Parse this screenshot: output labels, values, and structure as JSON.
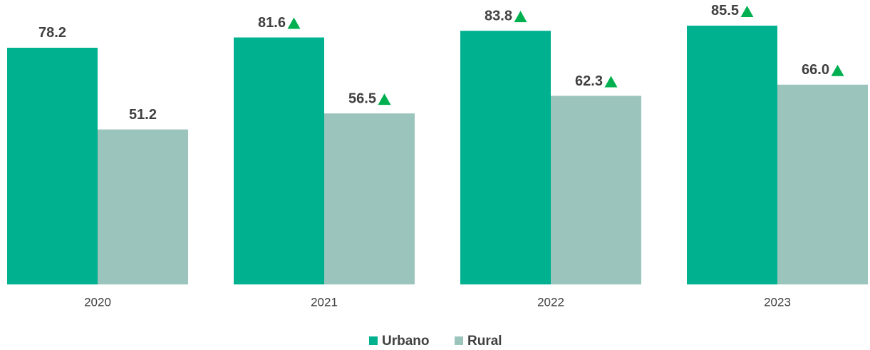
{
  "chart_data": {
    "type": "bar",
    "categories": [
      "2020",
      "2021",
      "2022",
      "2023"
    ],
    "series": [
      {
        "name": "Urbano",
        "color": "#00b18f",
        "values": [
          78.2,
          81.6,
          83.8,
          85.5
        ],
        "value_labels": [
          "78.2",
          "81.6",
          "83.8",
          "85.5"
        ]
      },
      {
        "name": "Rural",
        "color": "#9bc4bc",
        "values": [
          51.2,
          56.5,
          62.3,
          66.0
        ],
        "value_labels": [
          "51.2",
          "56.5",
          "62.3",
          "66.0"
        ]
      }
    ],
    "ylim": [
      0,
      90
    ],
    "grid": false,
    "legend": "bottom"
  }
}
